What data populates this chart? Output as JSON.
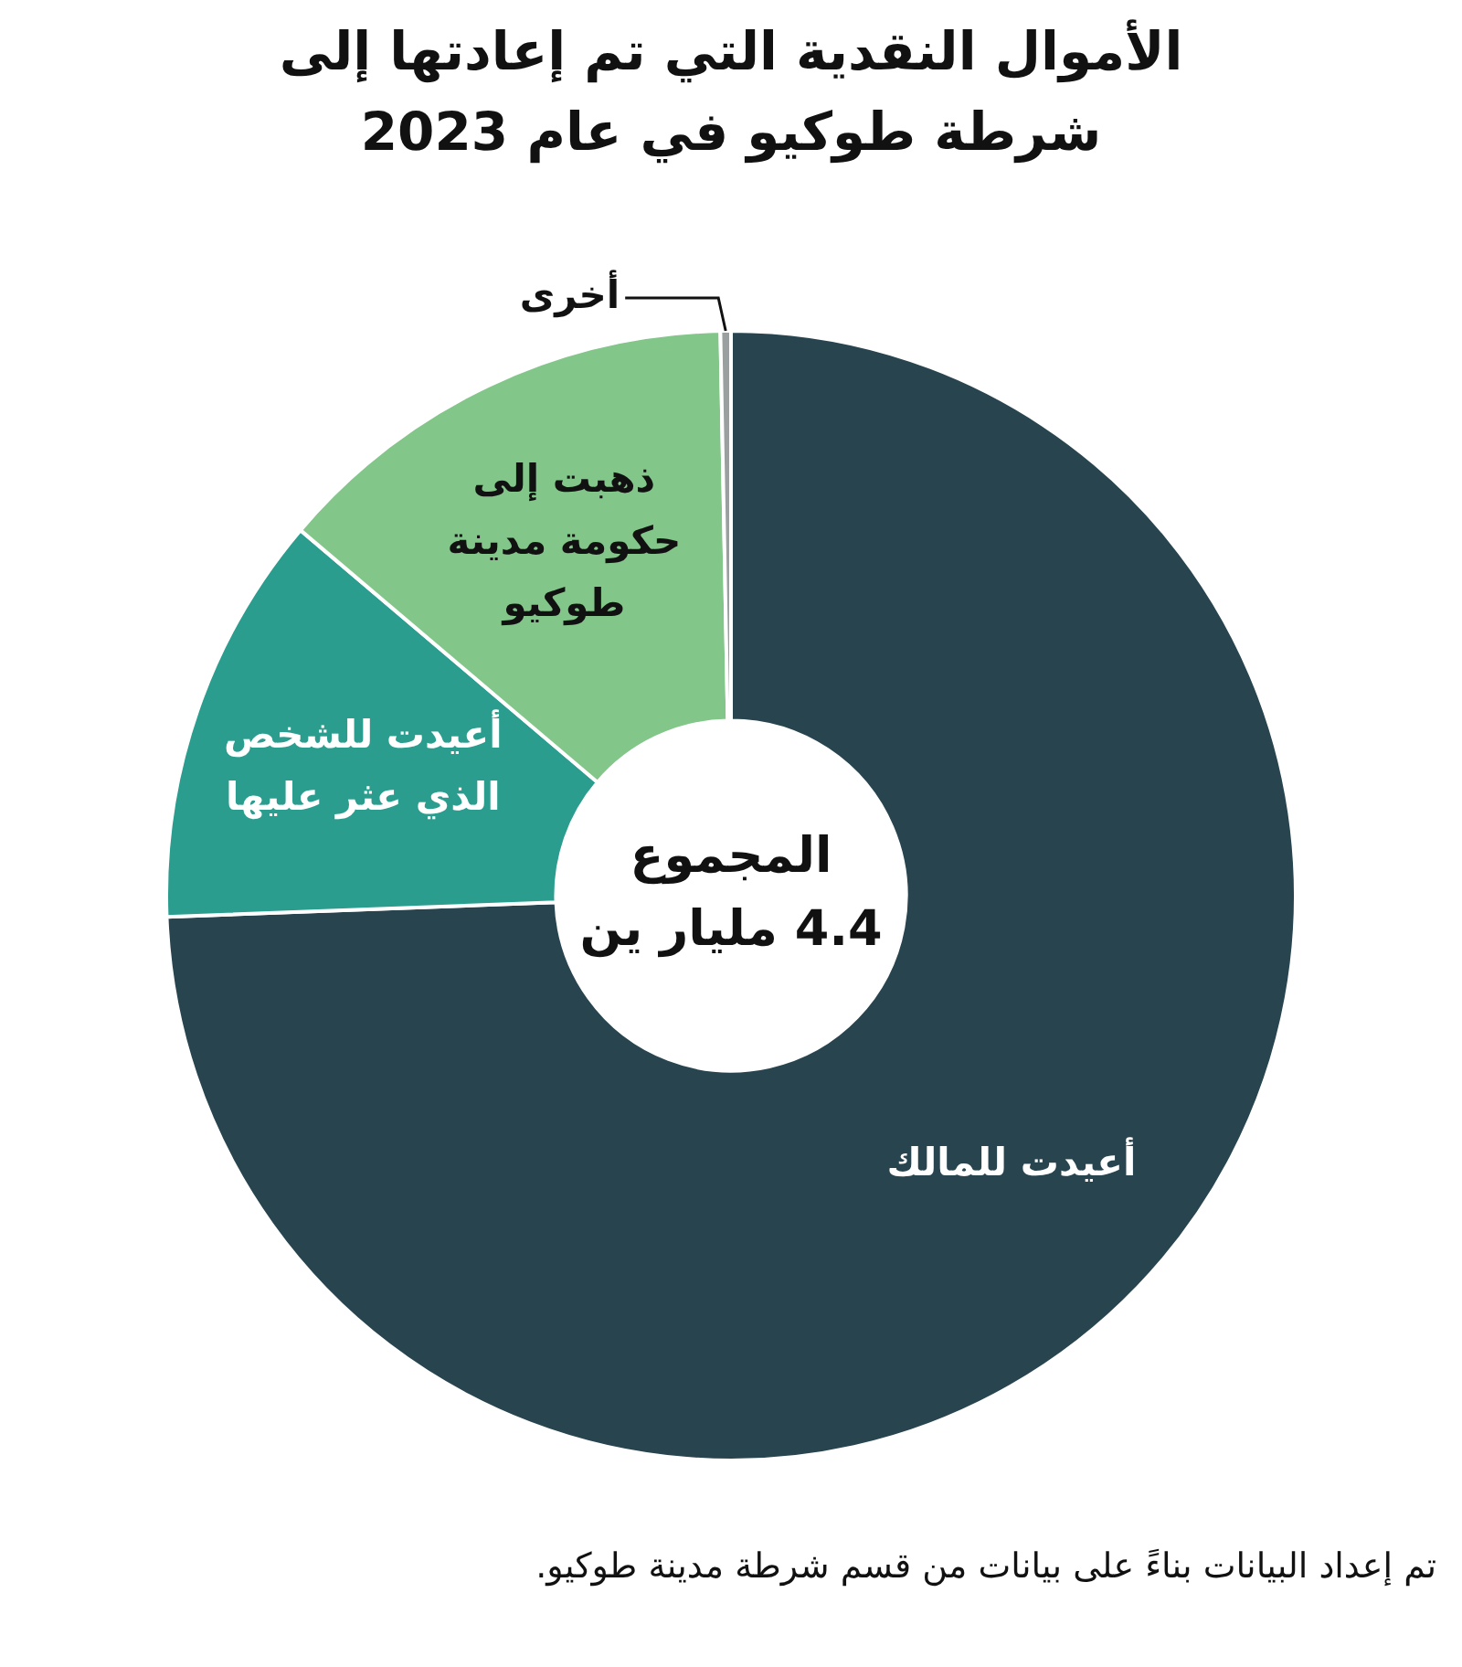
{
  "chart_data": {
    "type": "donut",
    "title": "الأموال النقدية التي تم إعادتها إلى شرطة طوكيو في عام 2023",
    "categories": [
      "أعيدت للمالك",
      "أعيدت للشخص الذي عثر عليها",
      "ذهبت إلى حكومة مدينة طوكيو",
      "أخرى"
    ],
    "values": [
      74.4,
      11.8,
      13.5,
      0.3
    ],
    "colors": [
      "#27444f",
      "#2a9d8f",
      "#82c68a",
      "#9aa0a0"
    ],
    "annotations": [
      "المجموع\n4.4 مليار ين",
      "تم إعداد البيانات بناءً على بيانات من قسم شرطة مدينة طوكيو."
    ],
    "legend": false
  }
}
